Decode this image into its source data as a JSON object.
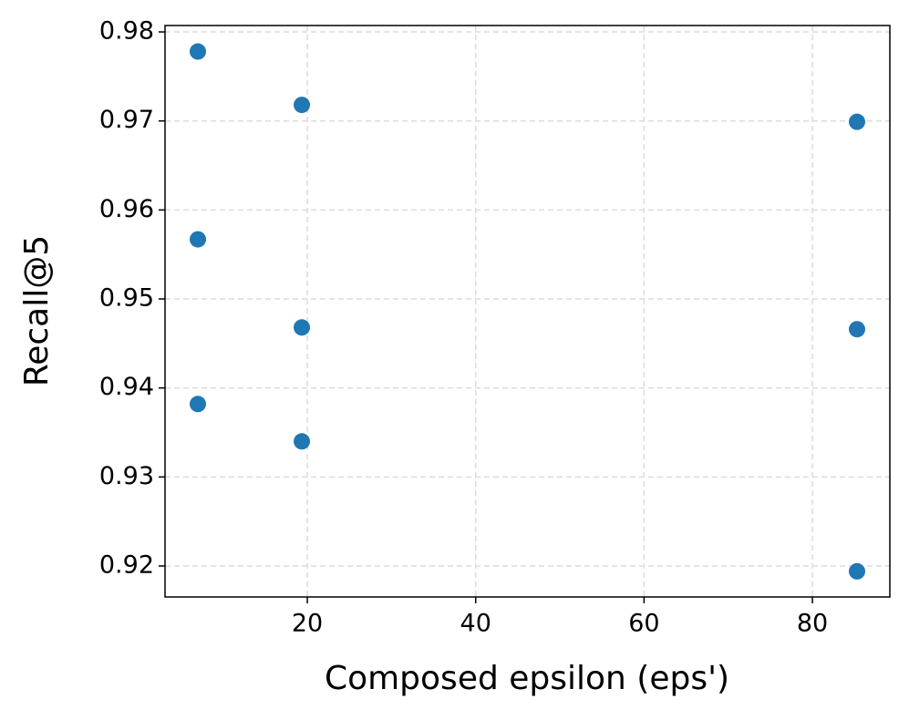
{
  "chart_data": {
    "type": "scatter",
    "x_label": "Composed epsilon (eps')",
    "y_label": "Recall@5",
    "x": [
      7.0,
      7.0,
      7.0,
      19.35,
      19.35,
      19.35,
      85.3,
      85.3,
      85.3
    ],
    "y": [
      0.9778,
      0.9567,
      0.9382,
      0.9718,
      0.9468,
      0.934,
      0.9699,
      0.9466,
      0.9194
    ],
    "color": "#1f77b4",
    "xlim": [
      3.1,
      89.2
    ],
    "ylim": [
      0.91652,
      0.98072
    ],
    "xticks": [
      20,
      40,
      60,
      80
    ],
    "yticks": [
      0.92,
      0.93,
      0.94,
      0.95,
      0.96,
      0.97,
      0.98
    ],
    "grid": true
  }
}
